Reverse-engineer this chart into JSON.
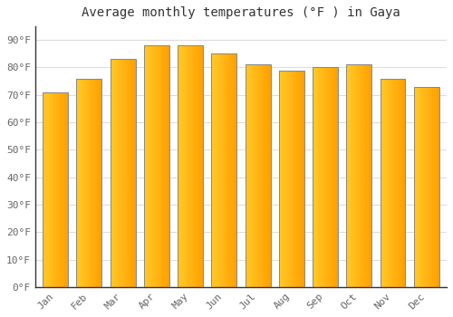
{
  "title": "Average monthly temperatures (°F ) in Gaya",
  "months": [
    "Jan",
    "Feb",
    "Mar",
    "Apr",
    "May",
    "Jun",
    "Jul",
    "Aug",
    "Sep",
    "Oct",
    "Nov",
    "Dec"
  ],
  "values": [
    71,
    76,
    83,
    88,
    88,
    85,
    81,
    79,
    80,
    81,
    76,
    73
  ],
  "bar_color_left": "#FFCA28",
  "bar_color_right": "#FFA000",
  "bar_edge_color": "#888888",
  "ylim": [
    0,
    95
  ],
  "yticks": [
    0,
    10,
    20,
    30,
    40,
    50,
    60,
    70,
    80,
    90
  ],
  "ytick_labels": [
    "0°F",
    "10°F",
    "20°F",
    "30°F",
    "40°F",
    "50°F",
    "60°F",
    "70°F",
    "80°F",
    "90°F"
  ],
  "background_color": "#ffffff",
  "grid_color": "#dddddd",
  "title_fontsize": 10,
  "tick_fontsize": 8,
  "bar_width": 0.75
}
